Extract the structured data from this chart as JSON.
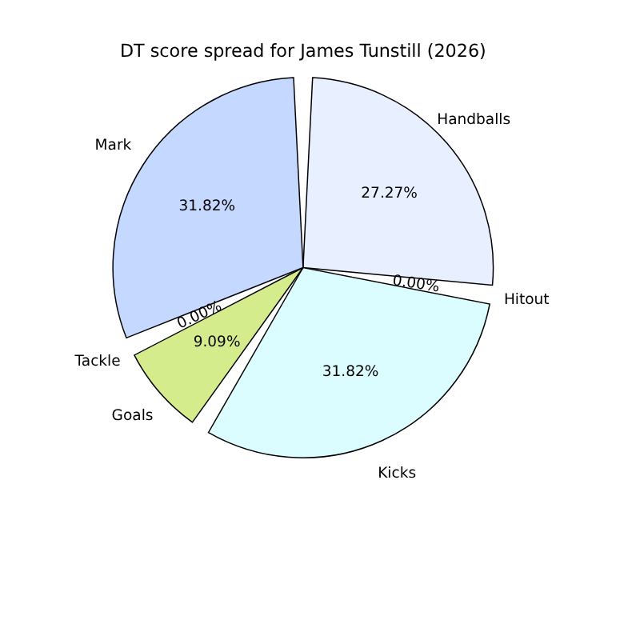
{
  "chart_data": {
    "type": "pie",
    "title": "DT score spread for James Tunstill (2026)",
    "categories": [
      "Handballs",
      "Hitout",
      "Kicks",
      "Goals",
      "Tackle",
      "Mark"
    ],
    "values": [
      27.27,
      0.0,
      31.82,
      9.09,
      0.0,
      31.82
    ],
    "value_labels": [
      "27.27%",
      "0.00%",
      "31.82%",
      "9.09%",
      "0.00%",
      "31.82%"
    ],
    "colors": [
      "#e8f0ff",
      "#fff0f0",
      "#dbfdff",
      "#d4ec8c",
      "#ffe0c0",
      "#c5d8ff"
    ],
    "legend": false
  }
}
